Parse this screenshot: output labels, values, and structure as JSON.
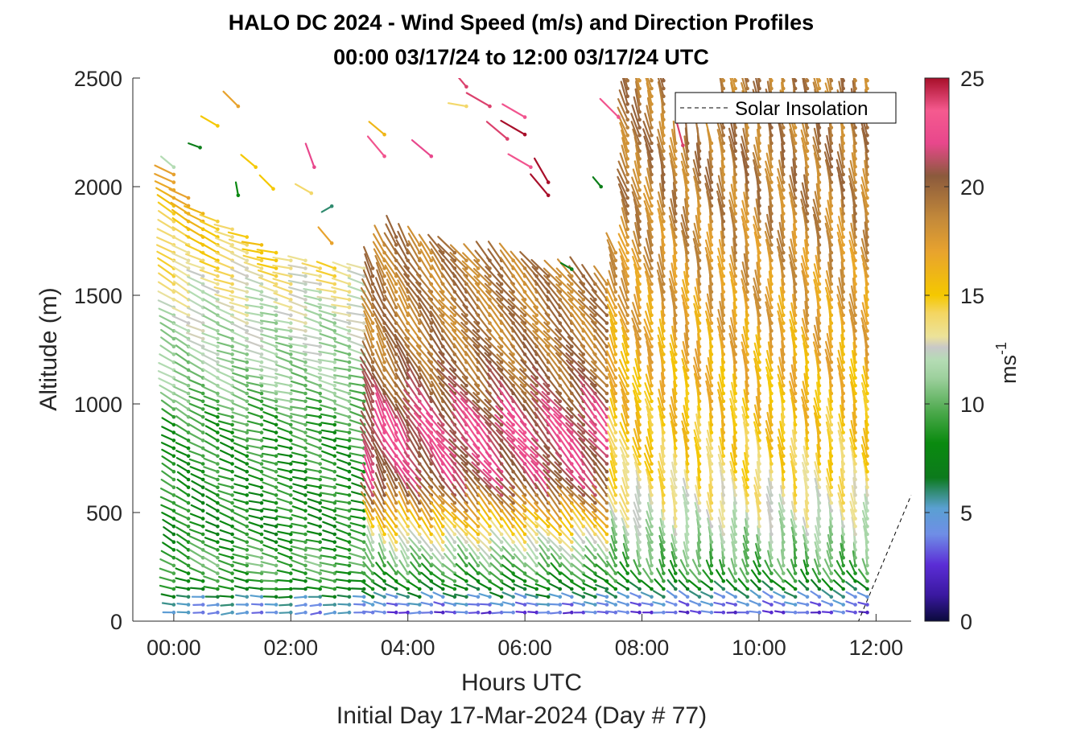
{
  "chart_data": {
    "type": "wind-barb-profile",
    "title": "HALO DC 2024 - Wind Speed (m/s) and Direction Profiles",
    "subtitle": "00:00 03/17/24 to 12:00 03/17/24  UTC",
    "xlabel": "Hours UTC",
    "xlabel2": "Initial Day 17-Mar-2024 (Day # 77)",
    "ylabel": "Altitude (m)",
    "x_unit": "hours",
    "xlim": [
      -0.7,
      12.6
    ],
    "ylim": [
      0,
      2500
    ],
    "x_ticks": [
      0,
      2,
      4,
      6,
      8,
      10,
      12
    ],
    "x_tick_labels": [
      "00:00",
      "02:00",
      "04:00",
      "06:00",
      "08:00",
      "10:00",
      "12:00"
    ],
    "y_ticks": [
      0,
      500,
      1000,
      1500,
      2000,
      2500
    ],
    "y_tick_labels": [
      "0",
      "500",
      "1000",
      "1500",
      "2000",
      "2500"
    ],
    "legend": {
      "label": "Solar Insolation",
      "placement": "top-right",
      "style": "dashed black line"
    },
    "colorbar": {
      "label": "ms",
      "label_exponent": "-1",
      "range": [
        0,
        25
      ],
      "ticks": [
        0,
        5,
        10,
        15,
        20,
        25
      ],
      "tick_labels": [
        "0",
        "5",
        "10",
        "15",
        "20",
        "25"
      ]
    },
    "solar_insolation_line": [
      [
        -0.7,
        0
      ],
      [
        11.7,
        0
      ],
      [
        12.6,
        580
      ]
    ],
    "profile_groups": [
      {
        "t_start": 0.0,
        "t_end": 3.25,
        "top": [
          2080,
          1950,
          1880,
          1850,
          1820,
          1790,
          1760,
          1720,
          1680,
          1660,
          1640,
          1640,
          1640,
          1640
        ],
        "dir": [
          300,
          300,
          295,
          295,
          290,
          290,
          285,
          285,
          285,
          285,
          285,
          285,
          285,
          285
        ],
        "regimes": [
          {
            "alt": 0,
            "spd": 4
          },
          {
            "alt": 90,
            "spd": 5
          },
          {
            "alt": 150,
            "spd": 8
          },
          {
            "alt": 260,
            "spd": 10
          },
          {
            "alt": 390,
            "spd": 8
          },
          {
            "alt": 900,
            "spd": 9
          },
          {
            "alt": 1100,
            "spd": 11
          },
          {
            "alt": 1400,
            "spd": 12
          },
          {
            "alt": 1650,
            "spd": 14
          },
          {
            "alt": 1950,
            "spd": 16
          }
        ]
      },
      {
        "t_start": 3.4,
        "t_end": 7.4,
        "top": [
          1640,
          1740,
          1780,
          1760,
          1740,
          1720,
          1700,
          1700,
          1680,
          1680,
          1660,
          1660,
          1660,
          1640,
          1640,
          1620,
          1620,
          1600,
          1600,
          1580,
          1580
        ],
        "dir": [
          335,
          335,
          330,
          330,
          325,
          325,
          325,
          320,
          320,
          320,
          320,
          320,
          320,
          320,
          320,
          320,
          320,
          320,
          320,
          320,
          320
        ],
        "regimes": [
          {
            "alt": 0,
            "spd": 2
          },
          {
            "alt": 100,
            "spd": 5
          },
          {
            "alt": 160,
            "spd": 8
          },
          {
            "alt": 320,
            "spd": 12
          },
          {
            "alt": 420,
            "spd": 15
          },
          {
            "alt": 600,
            "spd": 21
          },
          {
            "alt": 850,
            "spd": 22
          },
          {
            "alt": 1050,
            "spd": 20
          },
          {
            "alt": 1300,
            "spd": 19
          }
        ]
      },
      {
        "t_start": 7.55,
        "t_end": 11.85,
        "top": [
          1700,
          2500,
          2500,
          2500,
          2500,
          2200,
          2200,
          2200,
          2200,
          2500,
          2500,
          2500,
          2500,
          2500,
          2500,
          2500,
          2500,
          2500,
          2500,
          2500,
          2500,
          2500
        ],
        "dir": [
          340,
          340,
          345,
          345,
          350,
          350,
          350,
          350,
          350,
          350,
          350,
          350,
          350,
          350,
          350,
          350,
          350,
          350,
          350,
          350,
          350,
          350
        ],
        "regimes": [
          {
            "alt": 0,
            "spd": 2
          },
          {
            "alt": 110,
            "spd": 5
          },
          {
            "alt": 180,
            "spd": 9
          },
          {
            "alt": 350,
            "spd": 11
          },
          {
            "alt": 500,
            "spd": 13
          },
          {
            "alt": 800,
            "spd": 15
          },
          {
            "alt": 1350,
            "spd": 17
          },
          {
            "alt": 2000,
            "spd": 19
          }
        ]
      }
    ],
    "sparse_points": [
      {
        "t": 0.0,
        "alt": 2090,
        "spd": 12,
        "dir": 310
      },
      {
        "t": 0.45,
        "alt": 2180,
        "spd": 7,
        "dir": 290
      },
      {
        "t": 0.75,
        "alt": 2280,
        "spd": 15,
        "dir": 300
      },
      {
        "t": 1.1,
        "alt": 2370,
        "spd": 17,
        "dir": 315
      },
      {
        "t": 1.1,
        "alt": 1960,
        "spd": 8,
        "dir": 350
      },
      {
        "t": 1.4,
        "alt": 2090,
        "spd": 15,
        "dir": 310
      },
      {
        "t": 1.7,
        "alt": 1990,
        "spd": 15,
        "dir": 315
      },
      {
        "t": 2.4,
        "alt": 2090,
        "spd": 22,
        "dir": 340
      },
      {
        "t": 2.35,
        "alt": 1970,
        "spd": 14,
        "dir": 300
      },
      {
        "t": 2.7,
        "alt": 1910,
        "spd": 6,
        "dir": 240
      },
      {
        "t": 2.7,
        "alt": 1740,
        "spd": 17,
        "dir": 320
      },
      {
        "t": 3.6,
        "alt": 2240,
        "spd": 16,
        "dir": 310
      },
      {
        "t": 3.6,
        "alt": 2140,
        "spd": 23,
        "dir": 320
      },
      {
        "t": 4.4,
        "alt": 2140,
        "spd": 22,
        "dir": 310
      },
      {
        "t": 5.0,
        "alt": 2460,
        "spd": 24,
        "dir": 320
      },
      {
        "t": 5.0,
        "alt": 2370,
        "spd": 14,
        "dir": 280
      },
      {
        "t": 5.4,
        "alt": 2370,
        "spd": 24,
        "dir": 300
      },
      {
        "t": 5.7,
        "alt": 2220,
        "spd": 24,
        "dir": 310
      },
      {
        "t": 6.0,
        "alt": 2320,
        "spd": 23,
        "dir": 300
      },
      {
        "t": 6.0,
        "alt": 2240,
        "spd": 25,
        "dir": 300
      },
      {
        "t": 6.1,
        "alt": 2090,
        "spd": 23,
        "dir": 300
      },
      {
        "t": 6.4,
        "alt": 2020,
        "spd": 25,
        "dir": 330
      },
      {
        "t": 6.4,
        "alt": 1960,
        "spd": 25,
        "dir": 320
      },
      {
        "t": 6.8,
        "alt": 1620,
        "spd": 7,
        "dir": 300
      },
      {
        "t": 7.3,
        "alt": 2000,
        "spd": 7,
        "dir": 320
      },
      {
        "t": 7.6,
        "alt": 2320,
        "spd": 23,
        "dir": 315
      },
      {
        "t": 8.7,
        "alt": 2190,
        "spd": 24,
        "dir": 345
      }
    ]
  }
}
